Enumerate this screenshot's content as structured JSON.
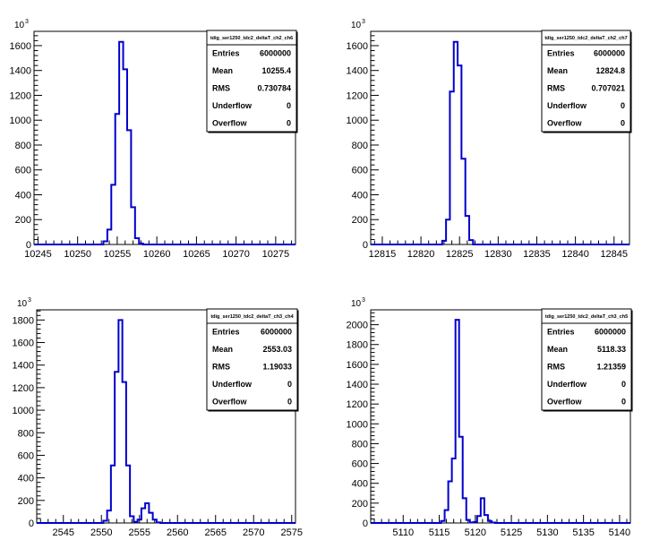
{
  "chart_data": [
    {
      "type": "histogram",
      "title": "",
      "stats_title": "tdig_ser1250_tdc2_deltaT_ch2_ch6",
      "y_exponent_base": "10",
      "y_exponent_power": "3",
      "xlim": [
        10244.5,
        10277.5
      ],
      "ylim": [
        0,
        1715
      ],
      "x_ticks": [
        10245,
        10250,
        10255,
        10260,
        10265,
        10270,
        10275
      ],
      "y_ticks": [
        0,
        200,
        400,
        600,
        800,
        1000,
        1200,
        1400,
        1600
      ],
      "bin_width": 0.5,
      "bins": [
        {
          "x": 10253.5,
          "y": 25
        },
        {
          "x": 10254.0,
          "y": 120
        },
        {
          "x": 10254.5,
          "y": 480
        },
        {
          "x": 10255.0,
          "y": 1050
        },
        {
          "x": 10255.5,
          "y": 1630
        },
        {
          "x": 10256.0,
          "y": 1410
        },
        {
          "x": 10256.5,
          "y": 920
        },
        {
          "x": 10257.0,
          "y": 300
        },
        {
          "x": 10257.5,
          "y": 50
        },
        {
          "x": 10258.0,
          "y": 8
        }
      ],
      "stats": [
        {
          "label": "Entries",
          "value": "6000000"
        },
        {
          "label": "Mean",
          "value": "10255.4"
        },
        {
          "label": "RMS",
          "value": "0.730784"
        },
        {
          "label": "Underflow",
          "value": "0"
        },
        {
          "label": "Overflow",
          "value": "0"
        }
      ],
      "line_color": "#0000cc"
    },
    {
      "type": "histogram",
      "title": "",
      "stats_title": "tdig_ser1250_tdc2_deltaT_ch2_ch7",
      "y_exponent_base": "10",
      "y_exponent_power": "3",
      "xlim": [
        12813.5,
        12847
      ],
      "ylim": [
        0,
        1715
      ],
      "x_ticks": [
        12815,
        12820,
        12825,
        12830,
        12835,
        12840,
        12845
      ],
      "y_ticks": [
        0,
        200,
        400,
        600,
        800,
        1000,
        1200,
        1400,
        1600
      ],
      "bin_width": 0.5,
      "bins": [
        {
          "x": 12823.0,
          "y": 30
        },
        {
          "x": 12823.5,
          "y": 200
        },
        {
          "x": 12824.0,
          "y": 1230
        },
        {
          "x": 12824.5,
          "y": 1630
        },
        {
          "x": 12825.0,
          "y": 1440
        },
        {
          "x": 12825.5,
          "y": 690
        },
        {
          "x": 12826.0,
          "y": 230
        },
        {
          "x": 12826.5,
          "y": 35
        }
      ],
      "stats": [
        {
          "label": "Entries",
          "value": "6000000"
        },
        {
          "label": "Mean",
          "value": "12824.8"
        },
        {
          "label": "RMS",
          "value": "0.707021"
        },
        {
          "label": "Underflow",
          "value": "0"
        },
        {
          "label": "Overflow",
          "value": "0"
        }
      ],
      "line_color": "#0000cc"
    },
    {
      "type": "histogram",
      "title": "",
      "stats_title": "tdig_ser1250_tdc2_deltaT_ch3_ch4",
      "y_exponent_base": "10",
      "y_exponent_power": "3",
      "xlim": [
        2541.5,
        2575.5
      ],
      "ylim": [
        0,
        1890
      ],
      "x_ticks": [
        2545,
        2550,
        2555,
        2560,
        2565,
        2570,
        2575
      ],
      "y_ticks": [
        0,
        200,
        400,
        600,
        800,
        1000,
        1200,
        1400,
        1600,
        1800
      ],
      "bin_width": 0.5,
      "bins": [
        {
          "x": 2550.5,
          "y": 20
        },
        {
          "x": 2551.0,
          "y": 110
        },
        {
          "x": 2551.5,
          "y": 510
        },
        {
          "x": 2552.0,
          "y": 1340
        },
        {
          "x": 2552.5,
          "y": 1800
        },
        {
          "x": 2553.0,
          "y": 1250
        },
        {
          "x": 2553.5,
          "y": 510
        },
        {
          "x": 2554.0,
          "y": 60
        },
        {
          "x": 2554.5,
          "y": 10
        },
        {
          "x": 2555.0,
          "y": 30
        },
        {
          "x": 2555.5,
          "y": 130
        },
        {
          "x": 2556.0,
          "y": 175
        },
        {
          "x": 2556.5,
          "y": 90
        },
        {
          "x": 2557.0,
          "y": 30
        },
        {
          "x": 2557.5,
          "y": 5
        }
      ],
      "stats": [
        {
          "label": "Entries",
          "value": "6000000"
        },
        {
          "label": "Mean",
          "value": "2553.03"
        },
        {
          "label": "RMS",
          "value": "1.19033"
        },
        {
          "label": "Underflow",
          "value": "0"
        },
        {
          "label": "Overflow",
          "value": "0"
        }
      ],
      "line_color": "#0000cc"
    },
    {
      "type": "histogram",
      "title": "",
      "stats_title": "tdig_ser1250_tdc2_deltaT_ch3_ch5",
      "y_exponent_base": "10",
      "y_exponent_power": "3",
      "xlim": [
        5105.5,
        5141.5
      ],
      "ylim": [
        0,
        2150
      ],
      "x_ticks": [
        5110,
        5115,
        5120,
        5125,
        5130,
        5135,
        5140
      ],
      "y_ticks": [
        0,
        200,
        400,
        600,
        800,
        1000,
        1200,
        1400,
        1600,
        1800,
        2000
      ],
      "bin_width": 0.5,
      "bins": [
        {
          "x": 5115.5,
          "y": 20
        },
        {
          "x": 5116.0,
          "y": 130
        },
        {
          "x": 5116.5,
          "y": 420
        },
        {
          "x": 5117.0,
          "y": 650
        },
        {
          "x": 5117.5,
          "y": 2050
        },
        {
          "x": 5118.0,
          "y": 870
        },
        {
          "x": 5118.5,
          "y": 250
        },
        {
          "x": 5119.0,
          "y": 30
        },
        {
          "x": 5119.5,
          "y": 5
        },
        {
          "x": 5120.0,
          "y": 10
        },
        {
          "x": 5120.5,
          "y": 70
        },
        {
          "x": 5121.0,
          "y": 250
        },
        {
          "x": 5121.5,
          "y": 80
        },
        {
          "x": 5122.0,
          "y": 20
        },
        {
          "x": 5122.5,
          "y": 5
        }
      ],
      "stats": [
        {
          "label": "Entries",
          "value": "6000000"
        },
        {
          "label": "Mean",
          "value": "5118.33"
        },
        {
          "label": "RMS",
          "value": "1.21359"
        },
        {
          "label": "Underflow",
          "value": "0"
        },
        {
          "label": "Overflow",
          "value": "0"
        }
      ],
      "line_color": "#0000cc"
    }
  ]
}
